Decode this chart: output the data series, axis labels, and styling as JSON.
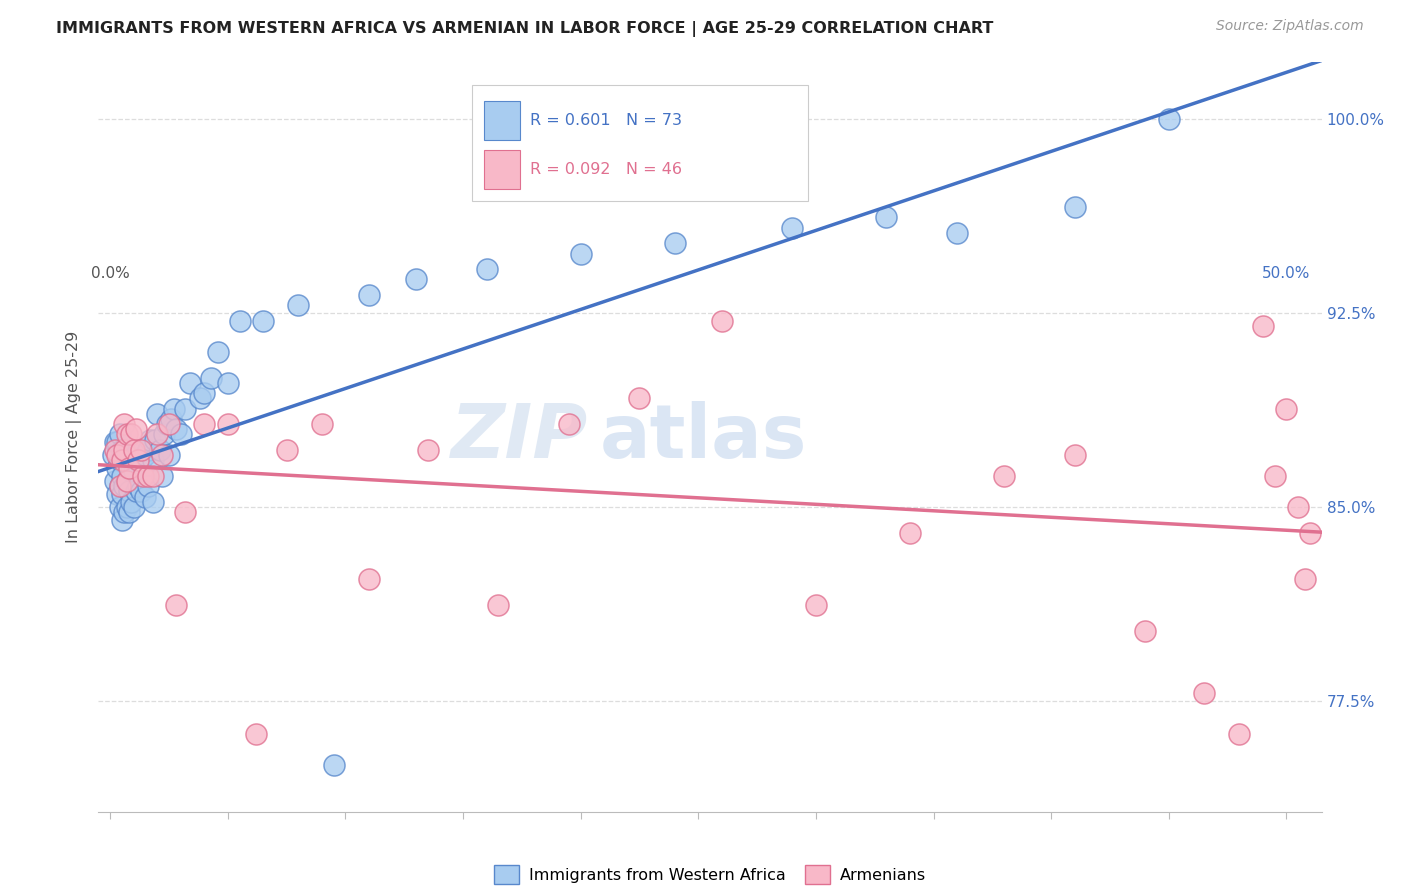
{
  "title": "IMMIGRANTS FROM WESTERN AFRICA VS ARMENIAN IN LABOR FORCE | AGE 25-29 CORRELATION CHART",
  "source": "Source: ZipAtlas.com",
  "ylabel": "In Labor Force | Age 25-29",
  "blue_R": 0.601,
  "blue_N": 73,
  "pink_R": 0.092,
  "pink_N": 46,
  "blue_fill_color": "#A8CCF0",
  "pink_fill_color": "#F8B8C8",
  "blue_edge_color": "#5888CC",
  "pink_edge_color": "#E07090",
  "blue_line_color": "#4472C4",
  "pink_line_color": "#E07090",
  "right_label_color": "#4472C4",
  "blue_legend_label": "Immigrants from Western Africa",
  "pink_legend_label": "Armenians",
  "xmin": -0.005,
  "xmax": 0.515,
  "ymin": 0.732,
  "ymax": 1.022,
  "ytick_vals": [
    0.775,
    0.85,
    0.925,
    1.0
  ],
  "ytick_labels": [
    "77.5%",
    "85.0%",
    "92.5%",
    "100.0%"
  ],
  "grid_color": "#DDDDDD",
  "title_color": "#222222",
  "source_color": "#999999",
  "blue_x": [
    0.001,
    0.002,
    0.002,
    0.003,
    0.003,
    0.003,
    0.004,
    0.004,
    0.004,
    0.004,
    0.005,
    0.005,
    0.005,
    0.005,
    0.006,
    0.006,
    0.006,
    0.007,
    0.007,
    0.007,
    0.008,
    0.008,
    0.008,
    0.009,
    0.009,
    0.01,
    0.01,
    0.011,
    0.011,
    0.012,
    0.012,
    0.013,
    0.013,
    0.014,
    0.015,
    0.015,
    0.016,
    0.016,
    0.017,
    0.018,
    0.018,
    0.019,
    0.02,
    0.021,
    0.022,
    0.023,
    0.024,
    0.025,
    0.026,
    0.027,
    0.028,
    0.03,
    0.032,
    0.034,
    0.038,
    0.04,
    0.043,
    0.046,
    0.05,
    0.055,
    0.065,
    0.08,
    0.095,
    0.11,
    0.13,
    0.16,
    0.2,
    0.24,
    0.29,
    0.33,
    0.36,
    0.41,
    0.45
  ],
  "blue_y": [
    0.87,
    0.86,
    0.875,
    0.855,
    0.865,
    0.875,
    0.85,
    0.858,
    0.868,
    0.878,
    0.845,
    0.855,
    0.862,
    0.872,
    0.848,
    0.858,
    0.868,
    0.85,
    0.86,
    0.87,
    0.848,
    0.856,
    0.866,
    0.852,
    0.864,
    0.85,
    0.864,
    0.856,
    0.87,
    0.858,
    0.872,
    0.856,
    0.868,
    0.862,
    0.854,
    0.87,
    0.858,
    0.872,
    0.876,
    0.852,
    0.868,
    0.876,
    0.886,
    0.872,
    0.862,
    0.878,
    0.882,
    0.87,
    0.884,
    0.888,
    0.88,
    0.878,
    0.888,
    0.898,
    0.892,
    0.894,
    0.9,
    0.91,
    0.898,
    0.922,
    0.922,
    0.928,
    0.75,
    0.932,
    0.938,
    0.942,
    0.948,
    0.952,
    0.958,
    0.962,
    0.956,
    0.966,
    1.0
  ],
  "pink_x": [
    0.002,
    0.003,
    0.004,
    0.005,
    0.006,
    0.006,
    0.007,
    0.007,
    0.008,
    0.009,
    0.01,
    0.011,
    0.012,
    0.013,
    0.014,
    0.016,
    0.018,
    0.02,
    0.022,
    0.025,
    0.028,
    0.032,
    0.04,
    0.05,
    0.062,
    0.075,
    0.09,
    0.11,
    0.135,
    0.165,
    0.195,
    0.225,
    0.26,
    0.3,
    0.34,
    0.38,
    0.41,
    0.44,
    0.465,
    0.48,
    0.49,
    0.495,
    0.5,
    0.505,
    0.508,
    0.51
  ],
  "pink_y": [
    0.872,
    0.87,
    0.858,
    0.868,
    0.872,
    0.882,
    0.86,
    0.878,
    0.865,
    0.878,
    0.872,
    0.88,
    0.868,
    0.872,
    0.862,
    0.862,
    0.862,
    0.878,
    0.87,
    0.882,
    0.812,
    0.848,
    0.882,
    0.882,
    0.762,
    0.872,
    0.882,
    0.822,
    0.872,
    0.812,
    0.882,
    0.892,
    0.922,
    0.812,
    0.84,
    0.862,
    0.87,
    0.802,
    0.778,
    0.762,
    0.92,
    0.862,
    0.888,
    0.85,
    0.822,
    0.84
  ]
}
